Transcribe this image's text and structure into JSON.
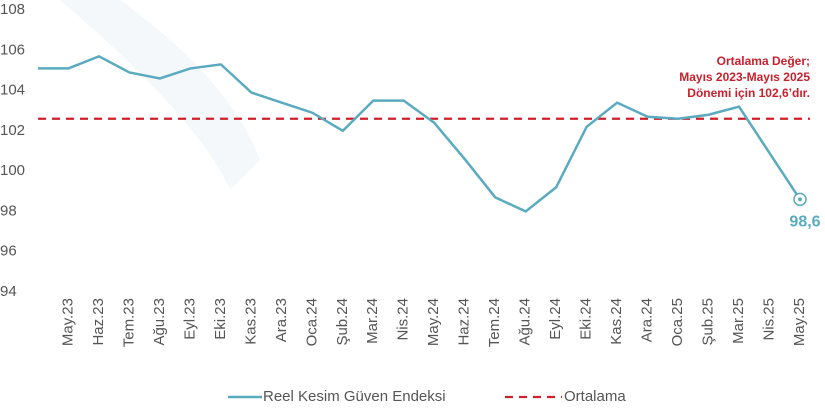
{
  "chart_data": {
    "type": "line",
    "categories": [
      null,
      "May.23",
      "Haz.23",
      "Tem.23",
      "Ağu.23",
      "Eyl.23",
      "Eki.23",
      "Kas.23",
      "Ara.23",
      "Oca.24",
      "Şub.24",
      "Mar.24",
      "Nis.24",
      "May.24",
      "Haz.24",
      "Tem.24",
      "Ağu.24",
      "Eyl.24",
      "Eki.24",
      "Kas.24",
      "Ara.24",
      "Oca.25",
      "Şub.25",
      "Mar.25",
      "Nis.25",
      "May.25"
    ],
    "series": [
      {
        "name": "Reel Kesim Güven Endeksi",
        "color": "#5aabc0",
        "values": [
          105.1,
          105.1,
          105.7,
          104.9,
          104.6,
          105.1,
          105.3,
          103.9,
          103.4,
          102.9,
          102.0,
          103.5,
          103.5,
          102.4,
          100.6,
          98.7,
          98.0,
          99.2,
          102.2,
          103.4,
          102.7,
          102.6,
          102.8,
          103.2,
          100.9,
          98.6
        ],
        "value_labels": [
          null,
          null,
          null,
          null,
          null,
          null,
          null,
          null,
          null,
          null,
          null,
          null,
          null,
          null,
          null,
          null,
          null,
          null,
          null,
          null,
          null,
          null,
          null,
          null,
          null,
          "98,6"
        ]
      }
    ],
    "reference_line": {
      "name": "Ortalama",
      "value": 102.6,
      "color": "#d0202e"
    },
    "annotation": [
      "Ortalama Değer;",
      "Mayıs 2023-Mayıs 2025",
      "Dönemi için 102,6’dır."
    ],
    "ylim": [
      94,
      108
    ],
    "yticks": [
      94,
      96,
      98,
      100,
      102,
      104,
      106,
      108
    ],
    "grid": false
  }
}
